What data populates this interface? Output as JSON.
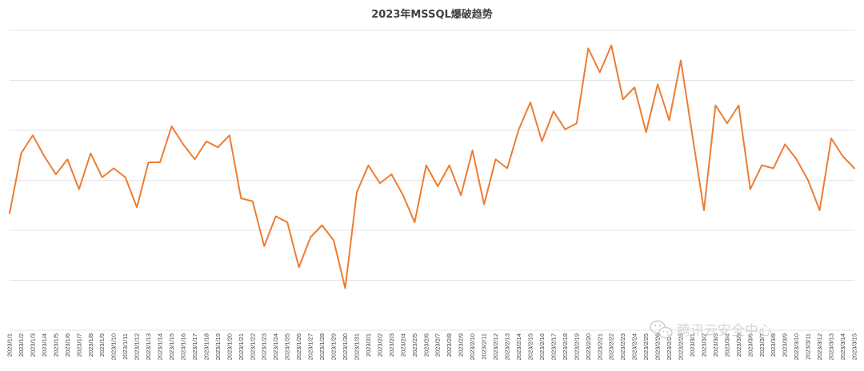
{
  "colors": {
    "series": "#ed7d31",
    "grid": "#e4e4e4",
    "text": "#404040"
  },
  "watermark": {
    "text": "腾讯云安全中心",
    "icon": "wechat-icon"
  },
  "chart_data": {
    "type": "line",
    "title": "2023年MSSQL爆破趋势",
    "xlabel": "",
    "ylabel": "",
    "ylim": [
      0,
      100
    ],
    "grid": true,
    "legend": "none",
    "categories": [
      "2023/1/1",
      "2023/1/2",
      "2023/1/3",
      "2023/1/4",
      "2023/1/5",
      "2023/1/6",
      "2023/1/7",
      "2023/1/8",
      "2023/1/9",
      "2023/1/10",
      "2023/1/11",
      "2023/1/12",
      "2023/1/13",
      "2023/1/14",
      "2023/1/15",
      "2023/1/16",
      "2023/1/17",
      "2023/1/18",
      "2023/1/19",
      "2023/1/20",
      "2023/1/21",
      "2023/1/22",
      "2023/1/23",
      "2023/1/24",
      "2023/1/25",
      "2023/1/26",
      "2023/1/27",
      "2023/1/28",
      "2023/1/29",
      "2023/1/30",
      "2023/1/31",
      "2023/2/1",
      "2023/2/2",
      "2023/2/3",
      "2023/2/4",
      "2023/2/5",
      "2023/2/6",
      "2023/2/7",
      "2023/2/8",
      "2023/2/9",
      "2023/2/10",
      "2023/2/11",
      "2023/2/12",
      "2023/2/13",
      "2023/2/14",
      "2023/2/15",
      "2023/2/16",
      "2023/2/17",
      "2023/2/18",
      "2023/2/19",
      "2023/2/20",
      "2023/2/21",
      "2023/2/22",
      "2023/2/23",
      "2023/2/24",
      "2023/2/25",
      "2023/2/26",
      "2023/2/27",
      "2023/2/28",
      "2023/3/1",
      "2023/3/2",
      "2023/3/3",
      "2023/3/4",
      "2023/3/5",
      "2023/3/6",
      "2023/3/7",
      "2023/3/8",
      "2023/3/9",
      "2023/3/10",
      "2023/3/11",
      "2023/3/12",
      "2023/3/13",
      "2023/3/14",
      "2023/3/15"
    ],
    "series": [
      {
        "values": [
          39,
          59,
          65,
          58,
          52,
          57,
          47,
          59,
          51,
          54,
          51,
          41,
          56,
          56,
          68,
          62,
          57,
          63,
          61,
          65,
          44,
          43,
          28,
          38,
          36,
          21,
          31,
          35,
          30,
          14,
          46,
          55,
          49,
          52,
          45,
          36,
          55,
          48,
          55,
          45,
          60,
          42,
          57,
          54,
          67,
          76,
          63,
          73,
          67,
          69,
          94,
          86,
          95,
          77,
          81,
          66,
          82,
          70,
          90,
          65,
          40,
          75,
          69,
          75,
          47,
          55,
          54,
          62,
          57,
          50,
          40,
          64,
          58,
          54
        ]
      }
    ]
  }
}
